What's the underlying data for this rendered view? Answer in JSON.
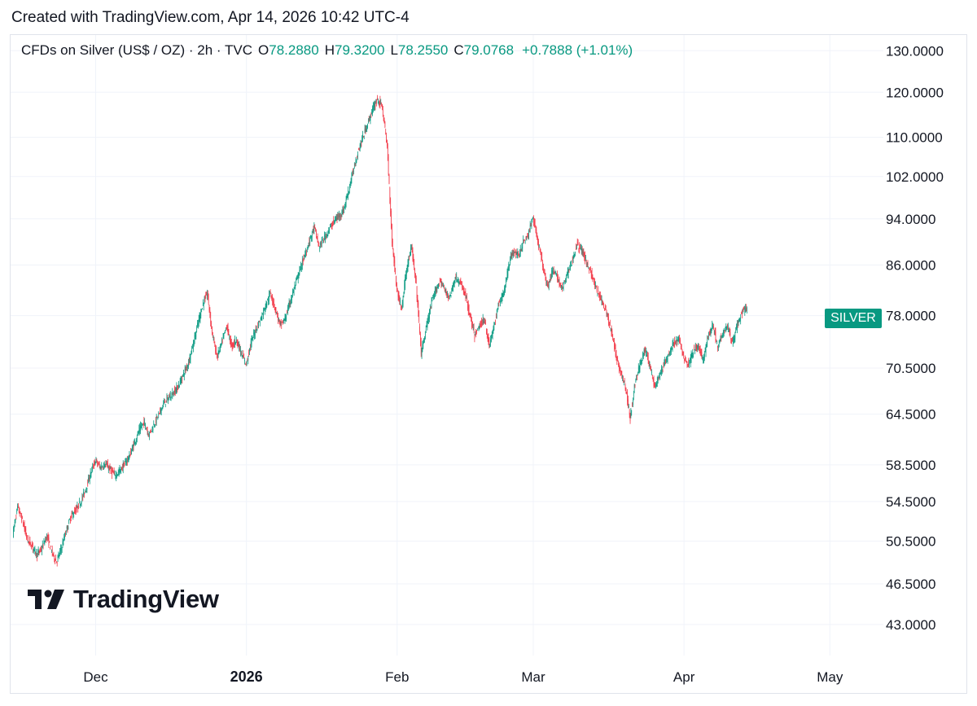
{
  "caption": "Created with TradingView.com, Apr 14, 2026 10:42 UTC-4",
  "legend": {
    "symbol": "CFDs on Silver (US$ / OZ) · 2h · TVC",
    "open_label": "O",
    "open": "78.2880",
    "high_label": "H",
    "high": "79.3200",
    "low_label": "L",
    "low": "78.2550",
    "close_label": "C",
    "close": "79.0768",
    "change": "+0.7888 (+1.01%)"
  },
  "badge": "SILVER",
  "logo": "TradingView",
  "colors": {
    "up": "#089981",
    "down": "#f23645",
    "grid": "#f0f3fa",
    "text": "#131722"
  },
  "chart_data": {
    "type": "line",
    "y_scale": "log",
    "ylim": [
      40.5,
      134
    ],
    "y_ticks": [
      "130.0000",
      "120.0000",
      "110.0000",
      "102.0000",
      "94.0000",
      "86.0000",
      "78.0000",
      "70.5000",
      "64.5000",
      "58.5000",
      "54.5000",
      "50.5000",
      "46.5000",
      "43.0000"
    ],
    "x_range": [
      "2025-11-14",
      "2026-05-12"
    ],
    "x_ticks": [
      {
        "label": "Dec",
        "date": "2025-12-01",
        "bold": false
      },
      {
        "label": "2026",
        "date": "2026-01-01",
        "bold": true
      },
      {
        "label": "Feb",
        "date": "2026-02-01",
        "bold": false
      },
      {
        "label": "Mar",
        "date": "2026-03-01",
        "bold": false
      },
      {
        "label": "Apr",
        "date": "2026-04-01",
        "bold": false
      },
      {
        "label": "May",
        "date": "2026-05-01",
        "bold": false
      }
    ],
    "series": [
      {
        "points": [
          [
            "2025-11-14",
            51.2
          ],
          [
            "2025-11-15",
            53.9
          ],
          [
            "2025-11-16",
            52.5
          ],
          [
            "2025-11-17",
            50.6
          ],
          [
            "2025-11-18",
            50.0
          ],
          [
            "2025-11-19",
            49.2
          ],
          [
            "2025-11-20",
            49.8
          ],
          [
            "2025-11-21",
            51.0
          ],
          [
            "2025-11-22",
            49.5
          ],
          [
            "2025-11-23",
            48.5
          ],
          [
            "2025-11-24",
            49.8
          ],
          [
            "2025-11-25",
            51.5
          ],
          [
            "2025-11-26",
            53.0
          ],
          [
            "2025-11-27",
            53.6
          ],
          [
            "2025-11-28",
            54.5
          ],
          [
            "2025-11-29",
            55.8
          ],
          [
            "2025-11-30",
            57.5
          ],
          [
            "2025-12-01",
            59.0
          ],
          [
            "2025-12-02",
            58.2
          ],
          [
            "2025-12-03",
            58.6
          ],
          [
            "2025-12-04",
            58.0
          ],
          [
            "2025-12-05",
            57.3
          ],
          [
            "2025-12-06",
            57.8
          ],
          [
            "2025-12-07",
            58.6
          ],
          [
            "2025-12-08",
            59.5
          ],
          [
            "2025-12-09",
            61.0
          ],
          [
            "2025-12-10",
            62.5
          ],
          [
            "2025-12-11",
            63.5
          ],
          [
            "2025-12-12",
            62.0
          ],
          [
            "2025-12-13",
            63.2
          ],
          [
            "2025-12-14",
            64.4
          ],
          [
            "2025-12-15",
            65.8
          ],
          [
            "2025-12-16",
            66.5
          ],
          [
            "2025-12-17",
            67.2
          ],
          [
            "2025-12-18",
            68.0
          ],
          [
            "2025-12-19",
            69.5
          ],
          [
            "2025-12-20",
            71.0
          ],
          [
            "2025-12-21",
            73.5
          ],
          [
            "2025-12-22",
            76.5
          ],
          [
            "2025-12-23",
            79.5
          ],
          [
            "2025-12-24",
            81.5
          ],
          [
            "2025-12-25",
            75.5
          ],
          [
            "2025-12-26",
            72.0
          ],
          [
            "2025-12-27",
            74.0
          ],
          [
            "2025-12-28",
            76.5
          ],
          [
            "2025-12-29",
            73.5
          ],
          [
            "2025-12-30",
            74.5
          ],
          [
            "2025-12-31",
            72.5
          ],
          [
            "2026-01-01",
            71.0
          ],
          [
            "2026-01-02",
            74.0
          ],
          [
            "2026-01-03",
            76.0
          ],
          [
            "2026-01-04",
            77.5
          ],
          [
            "2026-01-05",
            79.5
          ],
          [
            "2026-01-06",
            81.5
          ],
          [
            "2026-01-07",
            79.0
          ],
          [
            "2026-01-08",
            76.5
          ],
          [
            "2026-01-09",
            77.5
          ],
          [
            "2026-01-10",
            80.0
          ],
          [
            "2026-01-11",
            82.5
          ],
          [
            "2026-01-12",
            85.0
          ],
          [
            "2026-01-13",
            87.5
          ],
          [
            "2026-01-14",
            90.0
          ],
          [
            "2026-01-15",
            92.5
          ],
          [
            "2026-01-16",
            89.0
          ],
          [
            "2026-01-17",
            90.5
          ],
          [
            "2026-01-18",
            92.0
          ],
          [
            "2026-01-19",
            93.5
          ],
          [
            "2026-01-20",
            94.5
          ],
          [
            "2026-01-21",
            95.5
          ],
          [
            "2026-01-22",
            99.0
          ],
          [
            "2026-01-23",
            103.0
          ],
          [
            "2026-01-24",
            107.0
          ],
          [
            "2026-01-25",
            110.0
          ],
          [
            "2026-01-26",
            113.0
          ],
          [
            "2026-01-27",
            116.0
          ],
          [
            "2026-01-28",
            118.5
          ],
          [
            "2026-01-29",
            116.5
          ],
          [
            "2026-01-30",
            108.0
          ],
          [
            "2026-01-31",
            90.0
          ],
          [
            "2026-02-01",
            82.0
          ],
          [
            "2026-02-02",
            79.0
          ],
          [
            "2026-02-03",
            85.5
          ],
          [
            "2026-02-04",
            89.0
          ],
          [
            "2026-02-05",
            82.5
          ],
          [
            "2026-02-06",
            72.5
          ],
          [
            "2026-02-07",
            76.0
          ],
          [
            "2026-02-08",
            79.5
          ],
          [
            "2026-02-09",
            82.0
          ],
          [
            "2026-02-10",
            83.5
          ],
          [
            "2026-02-11",
            81.5
          ],
          [
            "2026-02-12",
            81.0
          ],
          [
            "2026-02-13",
            84.0
          ],
          [
            "2026-02-14",
            83.0
          ],
          [
            "2026-02-15",
            81.5
          ],
          [
            "2026-02-16",
            78.0
          ],
          [
            "2026-02-17",
            75.0
          ],
          [
            "2026-02-18",
            76.5
          ],
          [
            "2026-02-19",
            77.5
          ],
          [
            "2026-02-20",
            73.5
          ],
          [
            "2026-02-21",
            76.5
          ],
          [
            "2026-02-22",
            80.0
          ],
          [
            "2026-02-23",
            81.5
          ],
          [
            "2026-02-24",
            86.0
          ],
          [
            "2026-02-25",
            88.5
          ],
          [
            "2026-02-26",
            87.5
          ],
          [
            "2026-02-27",
            90.0
          ],
          [
            "2026-02-28",
            91.0
          ],
          [
            "2026-03-01",
            94.5
          ],
          [
            "2026-03-02",
            90.0
          ],
          [
            "2026-03-03",
            86.0
          ],
          [
            "2026-03-04",
            82.5
          ],
          [
            "2026-03-05",
            85.0
          ],
          [
            "2026-03-06",
            84.0
          ],
          [
            "2026-03-07",
            82.0
          ],
          [
            "2026-03-08",
            84.5
          ],
          [
            "2026-03-09",
            86.5
          ],
          [
            "2026-03-10",
            89.5
          ],
          [
            "2026-03-11",
            88.5
          ],
          [
            "2026-03-12",
            86.5
          ],
          [
            "2026-03-13",
            84.5
          ],
          [
            "2026-03-14",
            82.0
          ],
          [
            "2026-03-15",
            80.5
          ],
          [
            "2026-03-16",
            78.5
          ],
          [
            "2026-03-17",
            76.0
          ],
          [
            "2026-03-18",
            72.5
          ],
          [
            "2026-03-19",
            70.0
          ],
          [
            "2026-03-20",
            68.0
          ],
          [
            "2026-03-21",
            64.0
          ],
          [
            "2026-03-22",
            68.5
          ],
          [
            "2026-03-23",
            71.0
          ],
          [
            "2026-03-24",
            73.0
          ],
          [
            "2026-03-25",
            71.0
          ],
          [
            "2026-03-26",
            68.0
          ],
          [
            "2026-03-27",
            69.5
          ],
          [
            "2026-03-28",
            71.0
          ],
          [
            "2026-03-29",
            72.5
          ],
          [
            "2026-03-30",
            74.0
          ],
          [
            "2026-03-31",
            74.5
          ],
          [
            "2026-04-01",
            72.0
          ],
          [
            "2026-04-02",
            71.0
          ],
          [
            "2026-04-03",
            73.0
          ],
          [
            "2026-04-04",
            73.5
          ],
          [
            "2026-04-05",
            71.5
          ],
          [
            "2026-04-06",
            75.0
          ],
          [
            "2026-04-07",
            76.5
          ],
          [
            "2026-04-08",
            73.5
          ],
          [
            "2026-04-09",
            75.5
          ],
          [
            "2026-04-10",
            76.5
          ],
          [
            "2026-04-11",
            74.0
          ],
          [
            "2026-04-12",
            76.5
          ],
          [
            "2026-04-13",
            78.5
          ],
          [
            "2026-04-14",
            79.1
          ]
        ]
      }
    ]
  }
}
